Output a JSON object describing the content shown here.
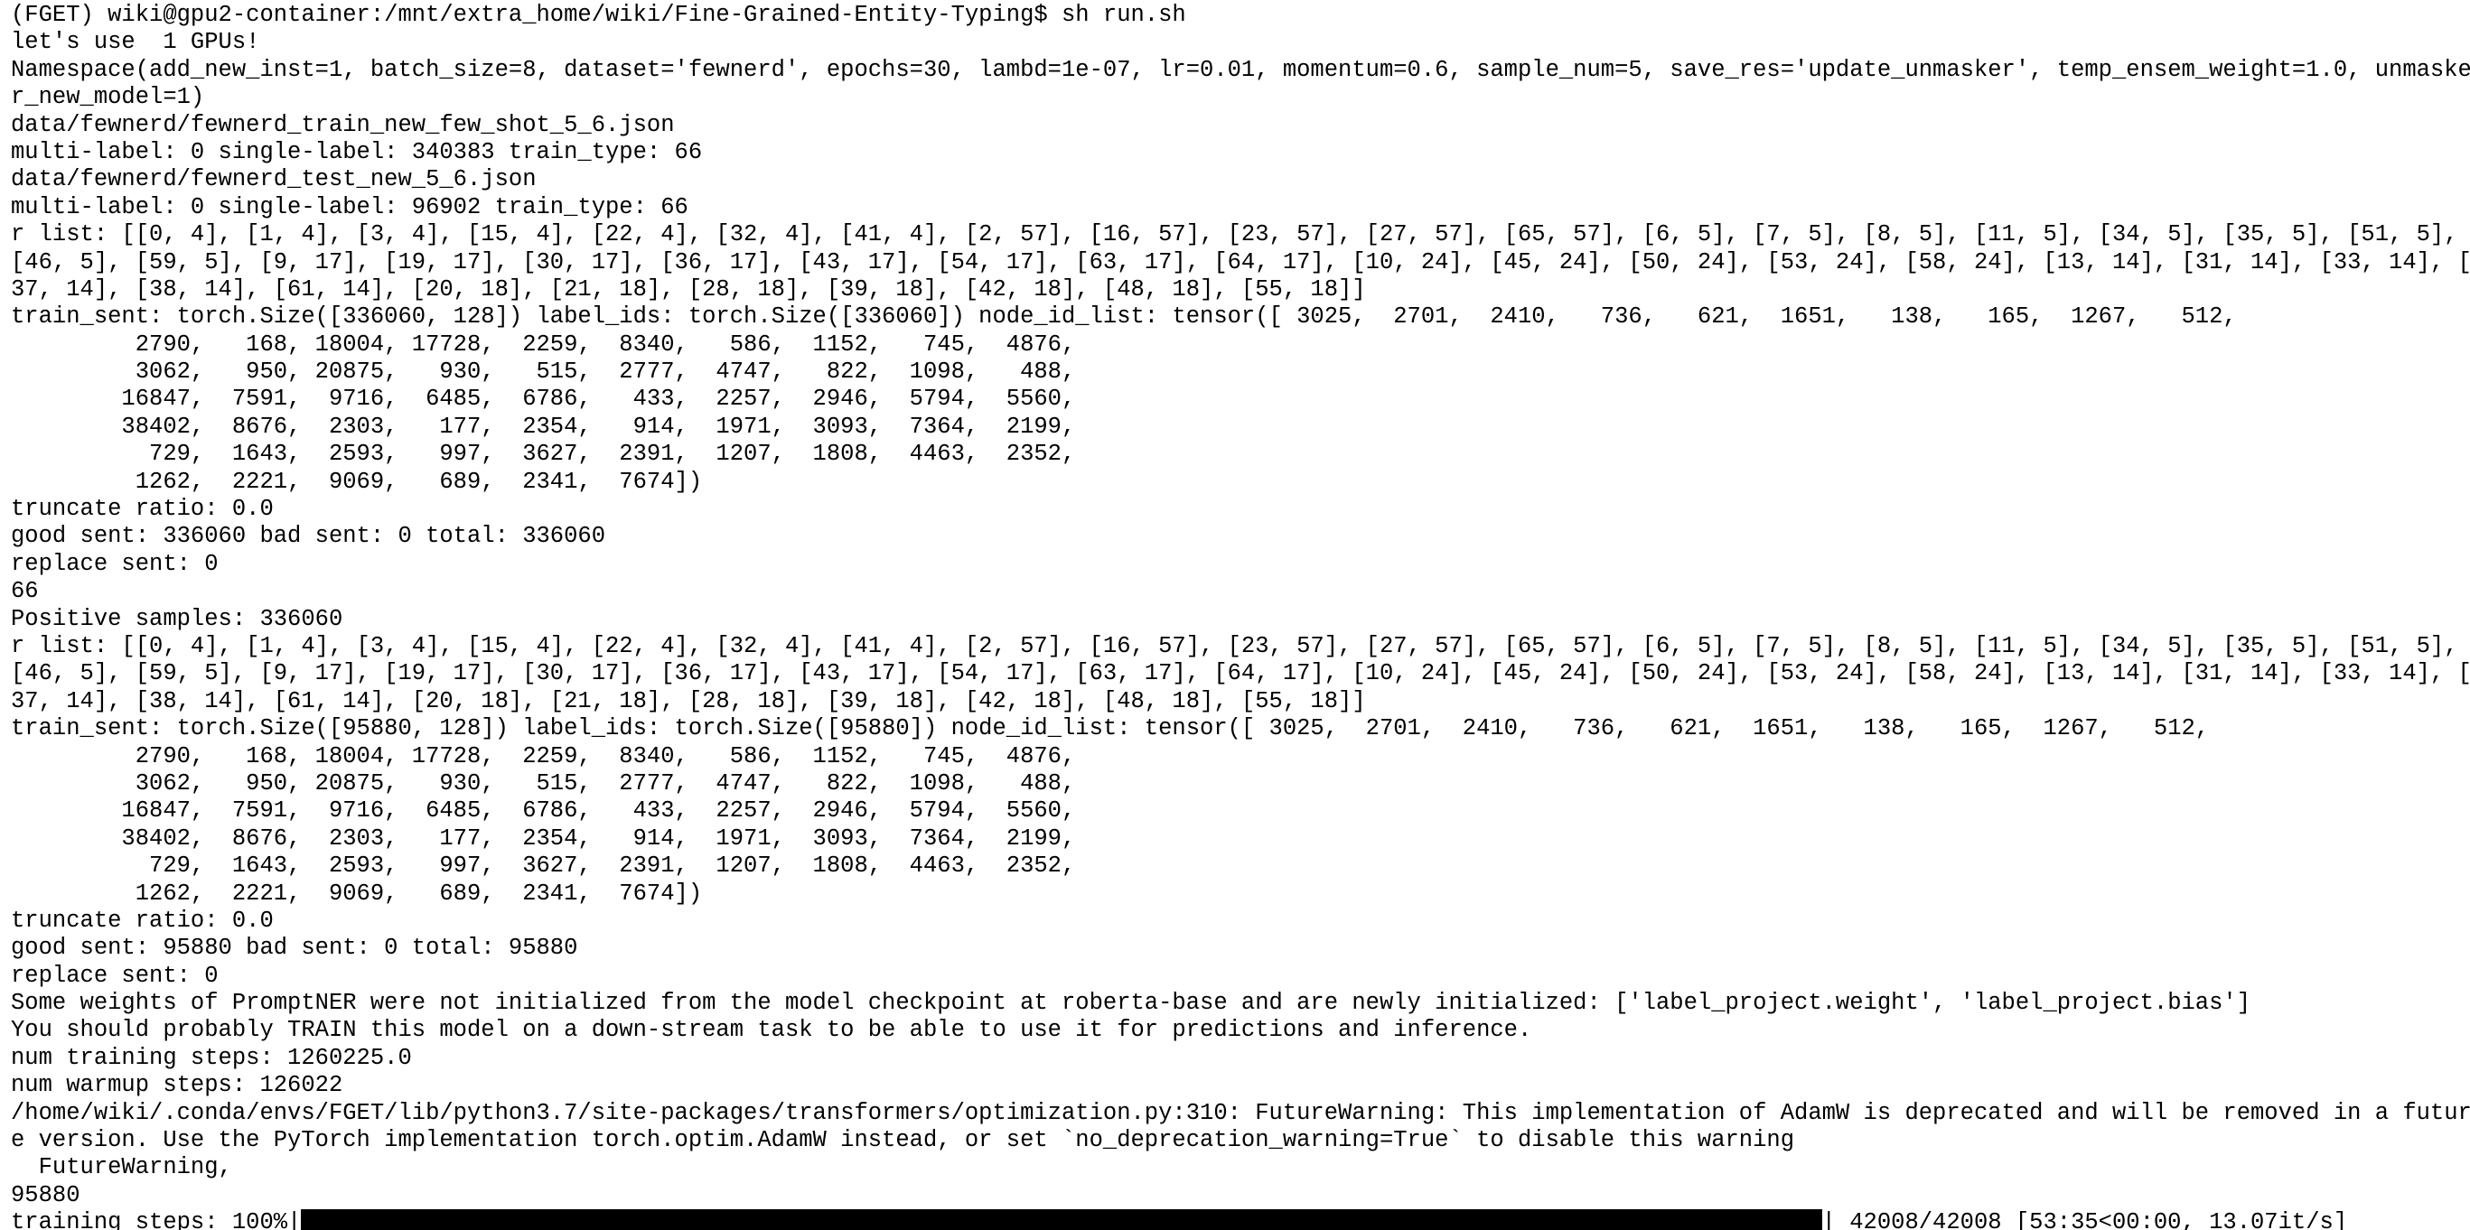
{
  "terminal": {
    "lines": [
      "(FGET) wiki@gpu2-container:/mnt/extra_home/wiki/Fine-Grained-Entity-Typing$ sh run.sh",
      "let's use  1 GPUs!",
      "Namespace(add_new_inst=1, batch_size=8, dataset='fewnerd', epochs=30, lambd=1e-07, lr=0.01, momentum=0.6, sample_num=5, save_res='update_unmasker', temp_ensem_weight=1.0, unmaske",
      "r_new_model=1)",
      "data/fewnerd/fewnerd_train_new_few_shot_5_6.json",
      "multi-label: 0 single-label: 340383 train_type: 66",
      "data/fewnerd/fewnerd_test_new_5_6.json",
      "multi-label: 0 single-label: 96902 train_type: 66",
      "r list: [[0, 4], [1, 4], [3, 4], [15, 4], [22, 4], [32, 4], [41, 4], [2, 57], [16, 57], [23, 57], [27, 57], [65, 57], [6, 5], [7, 5], [8, 5], [11, 5], [34, 5], [35, 5], [51, 5],",
      "[46, 5], [59, 5], [9, 17], [19, 17], [30, 17], [36, 17], [43, 17], [54, 17], [63, 17], [64, 17], [10, 24], [45, 24], [50, 24], [53, 24], [58, 24], [13, 14], [31, 14], [33, 14], [",
      "37, 14], [38, 14], [61, 14], [20, 18], [21, 18], [28, 18], [39, 18], [42, 18], [48, 18], [55, 18]]",
      "train_sent: torch.Size([336060, 128]) label_ids: torch.Size([336060]) node_id_list: tensor([ 3025,  2701,  2410,   736,   621,  1651,   138,   165,  1267,   512,",
      "         2790,   168, 18004, 17728,  2259,  8340,   586,  1152,   745,  4876,",
      "         3062,   950, 20875,   930,   515,  2777,  4747,   822,  1098,   488,",
      "        16847,  7591,  9716,  6485,  6786,   433,  2257,  2946,  5794,  5560,",
      "        38402,  8676,  2303,   177,  2354,   914,  1971,  3093,  7364,  2199,",
      "          729,  1643,  2593,   997,  3627,  2391,  1207,  1808,  4463,  2352,",
      "         1262,  2221,  9069,   689,  2341,  7674])",
      "truncate ratio: 0.0",
      "good sent: 336060 bad sent: 0 total: 336060",
      "replace sent: 0",
      "66",
      "Positive samples: 336060",
      "r list: [[0, 4], [1, 4], [3, 4], [15, 4], [22, 4], [32, 4], [41, 4], [2, 57], [16, 57], [23, 57], [27, 57], [65, 57], [6, 5], [7, 5], [8, 5], [11, 5], [34, 5], [35, 5], [51, 5],",
      "[46, 5], [59, 5], [9, 17], [19, 17], [30, 17], [36, 17], [43, 17], [54, 17], [63, 17], [64, 17], [10, 24], [45, 24], [50, 24], [53, 24], [58, 24], [13, 14], [31, 14], [33, 14], [",
      "37, 14], [38, 14], [61, 14], [20, 18], [21, 18], [28, 18], [39, 18], [42, 18], [48, 18], [55, 18]]",
      "train_sent: torch.Size([95880, 128]) label_ids: torch.Size([95880]) node_id_list: tensor([ 3025,  2701,  2410,   736,   621,  1651,   138,   165,  1267,   512,",
      "         2790,   168, 18004, 17728,  2259,  8340,   586,  1152,   745,  4876,",
      "         3062,   950, 20875,   930,   515,  2777,  4747,   822,  1098,   488,",
      "        16847,  7591,  9716,  6485,  6786,   433,  2257,  2946,  5794,  5560,",
      "        38402,  8676,  2303,   177,  2354,   914,  1971,  3093,  7364,  2199,",
      "          729,  1643,  2593,   997,  3627,  2391,  1207,  1808,  4463,  2352,",
      "         1262,  2221,  9069,   689,  2341,  7674])",
      "truncate ratio: 0.0",
      "good sent: 95880 bad sent: 0 total: 95880",
      "replace sent: 0",
      "Some weights of PromptNER were not initialized from the model checkpoint at roberta-base and are newly initialized: ['label_project.weight', 'label_project.bias']",
      "You should probably TRAIN this model on a down-stream task to be able to use it for predictions and inference.",
      "num training steps: 1260225.0",
      "num warmup steps: 126022",
      "/home/wiki/.conda/envs/FGET/lib/python3.7/site-packages/transformers/optimization.py:310: FutureWarning: This implementation of AdamW is deprecated and will be removed in a futur",
      "e version. Use the PyTorch implementation torch.optim.AdamW instead, or set `no_deprecation_warning=True` to disable this warning",
      "  FutureWarning,",
      "95880"
    ],
    "progress": {
      "prefix": "training steps: 100%|",
      "suffix": "| 42008/42008 [53:35<00:00, 13.07it/s]"
    }
  }
}
